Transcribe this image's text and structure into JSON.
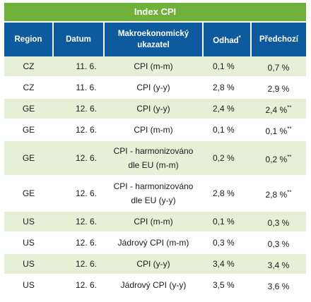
{
  "title": "Index CPI",
  "headers": {
    "region": "Region",
    "date": "Datum",
    "indicator": "Makroekonomický ukazatel",
    "estimate": "Odhad",
    "estimate_mark": "*",
    "previous": "Předchozí"
  },
  "rows": [
    {
      "region": "CZ",
      "date": "11. 6.",
      "indicator": "CPI (m-m)",
      "estimate": "0,1 %",
      "previous": "0,7 %",
      "previous_mark": ""
    },
    {
      "region": "CZ",
      "date": "11. 6.",
      "indicator": "CPI (y-y)",
      "estimate": "2,8 %",
      "previous": "2,9 %",
      "previous_mark": ""
    },
    {
      "region": "GE",
      "date": "12. 6.",
      "indicator": "CPI (y-y)",
      "estimate": "2,4 %",
      "previous": "2,4 %",
      "previous_mark": "**"
    },
    {
      "region": "GE",
      "date": "12. 6.",
      "indicator": "CPI (m-m)",
      "estimate": "0,1 %",
      "previous": "0,1 %",
      "previous_mark": "**"
    },
    {
      "region": "GE",
      "date": "12. 6.",
      "indicator": "CPI - harmonizováno dle EU (m-m)",
      "estimate": "0,2 %",
      "previous": "0,2 %",
      "previous_mark": "**"
    },
    {
      "region": "GE",
      "date": "12. 6.",
      "indicator": "CPI - harmonizováno dle EU (y-y)",
      "estimate": "2,8 %",
      "previous": "2,8 %",
      "previous_mark": "**"
    },
    {
      "region": "US",
      "date": "12. 6.",
      "indicator": "CPI (m-m)",
      "estimate": "0,1 %",
      "previous": "0,3 %",
      "previous_mark": ""
    },
    {
      "region": "US",
      "date": "12. 6.",
      "indicator": "Jádrový CPI (m-m)",
      "estimate": "0,3 %",
      "previous": "0,3 %",
      "previous_mark": ""
    },
    {
      "region": "US",
      "date": "12. 6.",
      "indicator": "CPI (y-y)",
      "estimate": "3,4 %",
      "previous": "3,4 %",
      "previous_mark": ""
    },
    {
      "region": "US",
      "date": "12. 6.",
      "indicator": "Jádrový CPI (y-y)",
      "estimate": "3,5 %",
      "previous": "3,6 %",
      "previous_mark": ""
    }
  ],
  "colors": {
    "title_bg": "#6fb13a",
    "header_bg": "#0e5a9e",
    "stripe_bg": "#e5f0d7"
  }
}
